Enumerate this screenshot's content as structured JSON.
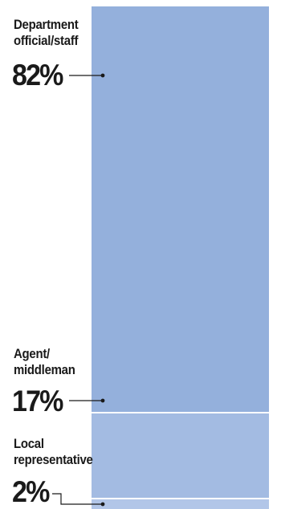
{
  "chart_data": {
    "type": "bar",
    "stacked": true,
    "categories": [
      "Department official/staff",
      "Agent/ middleman",
      "Local representative"
    ],
    "values": [
      82,
      17,
      2
    ],
    "value_labels": [
      "82%",
      "17%",
      "2%"
    ],
    "label_lines": [
      [
        "Department",
        "official/staff"
      ],
      [
        "Agent/",
        "middleman"
      ],
      [
        "Local",
        "representative"
      ]
    ],
    "colors": [
      "#94b0dc",
      "#a3bbe2",
      "#b2c6e8"
    ],
    "leader_color": "#1a1a1a",
    "title": "",
    "xlabel": "",
    "ylabel": "",
    "legend": "none",
    "grid": false
  }
}
